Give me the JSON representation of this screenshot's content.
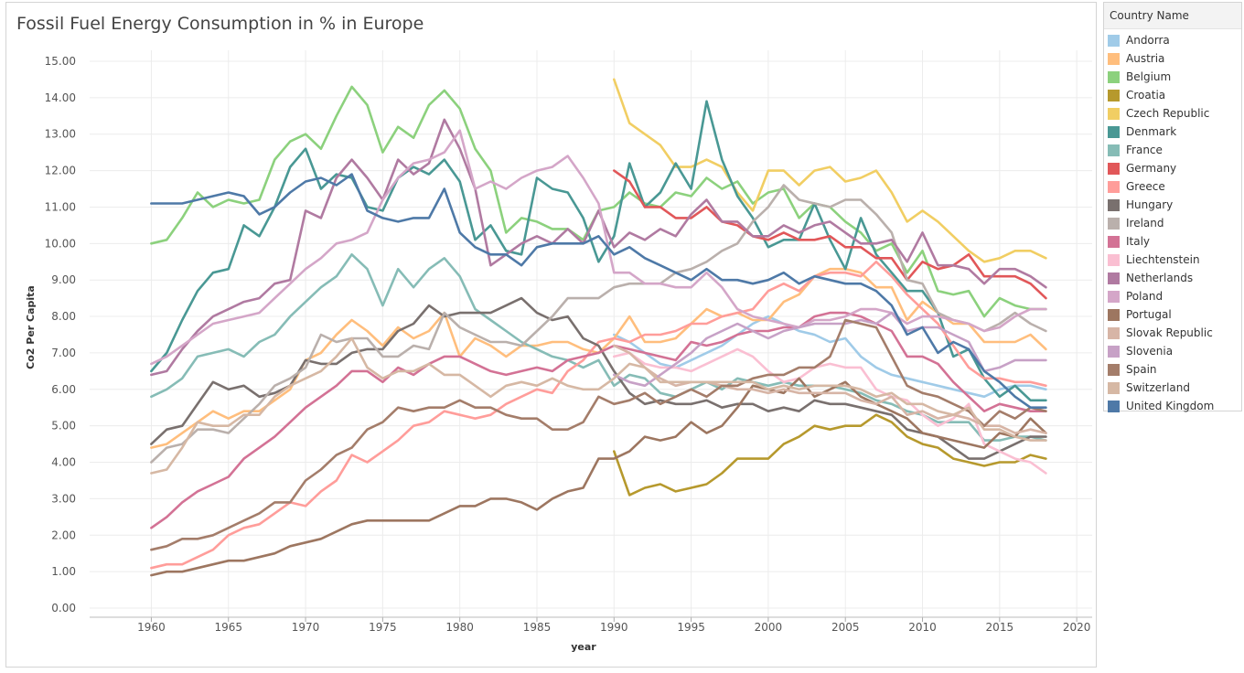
{
  "chart_data": {
    "type": "line",
    "title": "Fossil Fuel Energy Consumption in % in Europe",
    "xlabel": "year",
    "ylabel": "Co2 Per Capita",
    "xlim": [
      1956,
      2021
    ],
    "ylim": [
      -0.25,
      15.3
    ],
    "x_ticks": [
      1960,
      1965,
      1970,
      1975,
      1980,
      1985,
      1990,
      1995,
      2000,
      2005,
      2010,
      2015,
      2020
    ],
    "x_tick_labels": [
      "1960",
      "1965",
      "1970",
      "1975",
      "1980",
      "1985",
      "1990",
      "1995",
      "2000",
      "2005",
      "2010",
      "2015",
      "2020"
    ],
    "y_ticks": [
      0,
      1,
      2,
      3,
      4,
      5,
      6,
      7,
      8,
      9,
      10,
      11,
      12,
      13,
      14,
      15
    ],
    "y_tick_labels": [
      "0.00",
      "1.00",
      "2.00",
      "3.00",
      "4.00",
      "5.00",
      "6.00",
      "7.00",
      "8.00",
      "9.00",
      "10.00",
      "11.00",
      "12.00",
      "13.00",
      "14.00",
      "15.00"
    ],
    "grid": true,
    "legend_title": "Country Name",
    "legend_position": "right",
    "series": [
      {
        "name": "Andorra",
        "color": "#a0cbe8",
        "start": 1990,
        "values": [
          7.5,
          7.3,
          7.0,
          6.7,
          6.6,
          6.8,
          7.0,
          7.2,
          7.5,
          7.8,
          8.0,
          7.8,
          7.6,
          7.5,
          7.3,
          7.4,
          6.9,
          6.6,
          6.4,
          6.3,
          6.2,
          6.1,
          6.0,
          5.9,
          5.8,
          6.0,
          6.1,
          6.1,
          6.0
        ]
      },
      {
        "name": "Austria",
        "color": "#ffbe7d",
        "start": 1960,
        "values": [
          4.4,
          4.5,
          4.8,
          5.1,
          5.4,
          5.2,
          5.4,
          5.4,
          5.7,
          6.0,
          6.8,
          7.0,
          7.5,
          7.9,
          7.6,
          7.2,
          7.7,
          7.4,
          7.6,
          8.1,
          6.9,
          7.4,
          7.2,
          6.9,
          7.2,
          7.2,
          7.3,
          7.3,
          7.1,
          7.0,
          7.4,
          8.0,
          7.3,
          7.3,
          7.4,
          7.8,
          8.2,
          8.0,
          8.1,
          7.9,
          7.9,
          8.4,
          8.6,
          9.1,
          9.3,
          9.3,
          9.2,
          8.8,
          8.8,
          7.9,
          8.4,
          8.1,
          7.8,
          7.8,
          7.3,
          7.3,
          7.3,
          7.5,
          7.1
        ]
      },
      {
        "name": "Belgium",
        "color": "#8cd17d",
        "start": 1960,
        "values": [
          10.0,
          10.1,
          10.7,
          11.4,
          11.0,
          11.2,
          11.1,
          11.2,
          12.3,
          12.8,
          13.0,
          12.6,
          13.5,
          14.3,
          13.8,
          12.5,
          13.2,
          12.9,
          13.8,
          14.2,
          13.7,
          12.6,
          12.0,
          10.3,
          10.7,
          10.6,
          10.4,
          10.4,
          10.1,
          10.9,
          11.0,
          11.4,
          11.1,
          11.0,
          11.4,
          11.3,
          11.8,
          11.5,
          11.7,
          11.1,
          11.4,
          11.5,
          10.7,
          11.1,
          11.0,
          10.6,
          10.3,
          9.8,
          10.0,
          9.2,
          9.8,
          8.7,
          8.6,
          8.7,
          8.0,
          8.5,
          8.3,
          8.2,
          8.2
        ]
      },
      {
        "name": "Croatia",
        "color": "#b6992d",
        "start": 1990,
        "values": [
          4.3,
          3.1,
          3.3,
          3.4,
          3.2,
          3.3,
          3.4,
          3.7,
          4.1,
          4.1,
          4.1,
          4.5,
          4.7,
          5.0,
          4.9,
          5.0,
          5.0,
          5.3,
          5.1,
          4.7,
          4.5,
          4.4,
          4.1,
          4.0,
          3.9,
          4.0,
          4.0,
          4.2,
          4.1
        ]
      },
      {
        "name": "Czech Republic",
        "color": "#f1ce63",
        "start": 1990,
        "values": [
          14.5,
          13.3,
          13.0,
          12.7,
          12.1,
          12.1,
          12.3,
          12.1,
          11.4,
          10.9,
          12.0,
          12.0,
          11.6,
          12.0,
          12.1,
          11.7,
          11.8,
          12.0,
          11.4,
          10.6,
          10.9,
          10.6,
          10.2,
          9.8,
          9.5,
          9.6,
          9.8,
          9.8,
          9.6
        ]
      },
      {
        "name": "Denmark",
        "color": "#499894",
        "start": 1960,
        "values": [
          6.5,
          7.0,
          7.9,
          8.7,
          9.2,
          9.3,
          10.5,
          10.2,
          11.0,
          12.1,
          12.6,
          11.5,
          11.9,
          11.8,
          11.0,
          10.9,
          11.8,
          12.1,
          11.9,
          12.3,
          11.7,
          10.1,
          10.5,
          9.8,
          9.7,
          11.8,
          11.5,
          11.4,
          10.7,
          9.5,
          10.2,
          12.2,
          11.0,
          11.4,
          12.2,
          11.5,
          13.9,
          12.3,
          11.3,
          10.7,
          9.9,
          10.1,
          10.1,
          11.1,
          10.1,
          9.3,
          10.7,
          9.7,
          9.2,
          8.7,
          8.7,
          8.1,
          6.9,
          7.1,
          6.3,
          5.8,
          6.1,
          5.7,
          5.7
        ]
      },
      {
        "name": "France",
        "color": "#86bcb6",
        "start": 1960,
        "values": [
          5.8,
          6.0,
          6.3,
          6.9,
          7.0,
          7.1,
          6.9,
          7.3,
          7.5,
          8.0,
          8.4,
          8.8,
          9.1,
          9.7,
          9.3,
          8.3,
          9.3,
          8.8,
          9.3,
          9.6,
          9.1,
          8.2,
          7.9,
          7.6,
          7.3,
          7.1,
          6.9,
          6.8,
          6.6,
          6.8,
          6.1,
          6.4,
          6.3,
          5.9,
          5.8,
          6.0,
          6.2,
          6.0,
          6.3,
          6.2,
          6.1,
          6.2,
          6.1,
          6.1,
          6.1,
          6.0,
          5.9,
          5.7,
          5.6,
          5.4,
          5.3,
          5.1,
          5.1,
          5.1,
          4.6,
          4.6,
          4.7,
          4.7,
          4.6
        ]
      },
      {
        "name": "Germany",
        "color": "#e15759",
        "start": 1990,
        "values": [
          12.0,
          11.7,
          11.0,
          11.0,
          10.7,
          10.7,
          11.0,
          10.6,
          10.5,
          10.2,
          10.1,
          10.3,
          10.1,
          10.1,
          10.2,
          9.9,
          9.9,
          9.6,
          9.6,
          9.0,
          9.5,
          9.3,
          9.4,
          9.7,
          9.1,
          9.1,
          9.1,
          8.9,
          8.5
        ]
      },
      {
        "name": "Greece",
        "color": "#ff9d9a",
        "start": 1960,
        "values": [
          1.1,
          1.2,
          1.2,
          1.4,
          1.6,
          2.0,
          2.2,
          2.3,
          2.6,
          2.9,
          2.8,
          3.2,
          3.5,
          4.2,
          4.0,
          4.3,
          4.6,
          5.0,
          5.1,
          5.4,
          5.3,
          5.2,
          5.3,
          5.6,
          5.8,
          6.0,
          5.9,
          6.5,
          6.8,
          7.3,
          7.4,
          7.3,
          7.5,
          7.5,
          7.6,
          7.8,
          7.8,
          8.0,
          8.1,
          8.2,
          8.7,
          8.9,
          8.7,
          9.1,
          9.2,
          9.2,
          9.1,
          9.5,
          9.1,
          8.6,
          8.2,
          7.8,
          7.2,
          6.6,
          6.3,
          6.3,
          6.2,
          6.2,
          6.1
        ]
      },
      {
        "name": "Hungary",
        "color": "#79706e",
        "start": 1960,
        "values": [
          4.5,
          4.9,
          5.0,
          5.6,
          6.2,
          6.0,
          6.1,
          5.8,
          5.9,
          6.1,
          6.8,
          6.7,
          6.7,
          7.0,
          7.1,
          7.1,
          7.6,
          7.8,
          8.3,
          8.0,
          8.1,
          8.1,
          8.1,
          8.3,
          8.5,
          8.1,
          7.9,
          8.0,
          7.4,
          7.2,
          6.5,
          5.9,
          5.6,
          5.7,
          5.6,
          5.6,
          5.7,
          5.5,
          5.6,
          5.6,
          5.4,
          5.5,
          5.4,
          5.7,
          5.6,
          5.6,
          5.5,
          5.4,
          5.3,
          4.9,
          4.8,
          4.7,
          4.4,
          4.1,
          4.1,
          4.3,
          4.5,
          4.7,
          4.7
        ]
      },
      {
        "name": "Ireland",
        "color": "#bab0ac",
        "start": 1960,
        "values": [
          4.0,
          4.4,
          4.5,
          4.9,
          4.9,
          4.8,
          5.2,
          5.6,
          6.1,
          6.3,
          6.6,
          7.5,
          7.3,
          7.4,
          7.4,
          6.9,
          6.9,
          7.2,
          7.1,
          8.1,
          7.7,
          7.5,
          7.3,
          7.3,
          7.2,
          7.6,
          8.0,
          8.5,
          8.5,
          8.5,
          8.8,
          8.9,
          8.9,
          8.9,
          9.2,
          9.3,
          9.5,
          9.8,
          10.0,
          10.6,
          11.0,
          11.6,
          11.2,
          11.1,
          11.0,
          11.2,
          11.2,
          10.8,
          10.3,
          9.0,
          8.9,
          8.1,
          7.9,
          7.8,
          7.6,
          7.8,
          8.1,
          7.8,
          7.6
        ]
      },
      {
        "name": "Italy",
        "color": "#d37295",
        "start": 1960,
        "values": [
          2.2,
          2.5,
          2.9,
          3.2,
          3.4,
          3.6,
          4.1,
          4.4,
          4.7,
          5.1,
          5.5,
          5.8,
          6.1,
          6.5,
          6.5,
          6.2,
          6.6,
          6.4,
          6.7,
          6.9,
          6.9,
          6.7,
          6.5,
          6.4,
          6.5,
          6.6,
          6.5,
          6.8,
          6.9,
          7.0,
          7.2,
          7.1,
          7.0,
          6.9,
          6.8,
          7.3,
          7.2,
          7.3,
          7.5,
          7.6,
          7.6,
          7.7,
          7.7,
          8.0,
          8.1,
          8.1,
          8.0,
          7.8,
          7.6,
          6.9,
          6.9,
          6.7,
          6.2,
          5.8,
          5.4,
          5.6,
          5.5,
          5.4,
          5.4
        ]
      },
      {
        "name": "Liechtenstein",
        "color": "#fabfd2",
        "start": 1990,
        "values": [
          6.9,
          7.0,
          6.7,
          6.6,
          6.6,
          6.5,
          6.7,
          6.9,
          7.1,
          6.9,
          6.5,
          6.2,
          6.3,
          6.6,
          6.7,
          6.6,
          6.6,
          6.0,
          5.8,
          5.7,
          5.3,
          5.0,
          5.2,
          5.6,
          4.5,
          4.3,
          4.1,
          4.0,
          3.7
        ]
      },
      {
        "name": "Netherlands",
        "color": "#b07aa1",
        "start": 1960,
        "values": [
          6.4,
          6.5,
          7.1,
          7.6,
          8.0,
          8.2,
          8.4,
          8.5,
          8.9,
          9.0,
          10.9,
          10.7,
          11.8,
          12.3,
          11.8,
          11.2,
          12.3,
          11.9,
          12.2,
          13.4,
          12.6,
          11.5,
          9.4,
          9.7,
          10.0,
          10.2,
          10.0,
          10.4,
          10.0,
          10.9,
          9.9,
          10.3,
          10.1,
          10.4,
          10.2,
          10.8,
          11.2,
          10.6,
          10.6,
          10.2,
          10.2,
          10.5,
          10.3,
          10.5,
          10.6,
          10.3,
          10.0,
          10.0,
          10.1,
          9.5,
          10.3,
          9.4,
          9.4,
          9.3,
          8.9,
          9.3,
          9.3,
          9.1,
          8.8
        ]
      },
      {
        "name": "Poland",
        "color": "#d4a6c8",
        "start": 1960,
        "values": [
          6.7,
          6.9,
          7.2,
          7.5,
          7.8,
          7.9,
          8.0,
          8.1,
          8.5,
          8.9,
          9.3,
          9.6,
          10.0,
          10.1,
          10.3,
          11.2,
          11.8,
          12.2,
          12.3,
          12.5,
          13.1,
          11.5,
          11.7,
          11.5,
          11.8,
          12.0,
          12.1,
          12.4,
          11.8,
          11.1,
          9.2,
          9.2,
          8.9,
          8.9,
          8.8,
          8.8,
          9.2,
          8.8,
          8.2,
          8.0,
          7.9,
          7.8,
          7.7,
          7.9,
          7.9,
          8.0,
          8.2,
          8.2,
          8.1,
          7.8,
          8.0,
          8.0,
          7.9,
          7.8,
          7.6,
          7.7,
          8.0,
          8.2,
          8.2
        ]
      },
      {
        "name": "Portugal",
        "color": "#9d7660",
        "start": 1960,
        "values": [
          0.9,
          1.0,
          1.0,
          1.1,
          1.2,
          1.3,
          1.3,
          1.4,
          1.5,
          1.7,
          1.8,
          1.9,
          2.1,
          2.3,
          2.4,
          2.4,
          2.4,
          2.4,
          2.4,
          2.6,
          2.8,
          2.8,
          3.0,
          3.0,
          2.9,
          2.7,
          3.0,
          3.2,
          3.3,
          4.1,
          4.1,
          4.3,
          4.7,
          4.6,
          4.7,
          5.1,
          4.8,
          5.0,
          5.5,
          6.1,
          6.0,
          5.9,
          6.3,
          5.8,
          6.0,
          6.2,
          5.8,
          5.6,
          5.4,
          5.2,
          4.8,
          4.7,
          4.6,
          4.5,
          4.4,
          4.8,
          4.7,
          5.2,
          4.8
        ]
      },
      {
        "name": "Slovak Republic",
        "color": "#d7b5a6",
        "start": 1990,
        "values": [
          7.2,
          7.0,
          6.6,
          6.3,
          6.1,
          6.2,
          6.2,
          6.1,
          6.0,
          6.0,
          5.9,
          6.0,
          5.9,
          5.9,
          5.9,
          5.9,
          5.7,
          5.6,
          5.8,
          5.3,
          5.4,
          5.2,
          5.3,
          5.2,
          5.0,
          5.0,
          4.8,
          4.9,
          4.8
        ]
      },
      {
        "name": "Slovenia",
        "color": "#c7a1c6",
        "start": 1990,
        "values": [
          6.4,
          6.2,
          6.1,
          6.4,
          6.7,
          7.0,
          7.4,
          7.6,
          7.8,
          7.6,
          7.4,
          7.6,
          7.7,
          7.8,
          7.8,
          7.8,
          7.9,
          7.8,
          8.1,
          7.6,
          7.7,
          7.7,
          7.5,
          7.3,
          6.5,
          6.6,
          6.8,
          6.8,
          6.8
        ]
      },
      {
        "name": "Spain",
        "color": "#a47d6a",
        "start": 1960,
        "values": [
          1.6,
          1.7,
          1.9,
          1.9,
          2.0,
          2.2,
          2.4,
          2.6,
          2.9,
          2.9,
          3.5,
          3.8,
          4.2,
          4.4,
          4.9,
          5.1,
          5.5,
          5.4,
          5.5,
          5.5,
          5.7,
          5.5,
          5.5,
          5.3,
          5.2,
          5.2,
          4.9,
          4.9,
          5.1,
          5.8,
          5.6,
          5.7,
          5.9,
          5.6,
          5.8,
          6.0,
          5.8,
          6.1,
          6.1,
          6.3,
          6.4,
          6.4,
          6.6,
          6.6,
          6.9,
          7.9,
          7.8,
          7.7,
          6.9,
          6.1,
          5.9,
          5.8,
          5.6,
          5.4,
          5.0,
          5.4,
          5.2,
          5.5,
          5.4
        ]
      },
      {
        "name": "Switzerland",
        "color": "#d6b8a4",
        "start": 1960,
        "values": [
          3.7,
          3.8,
          4.4,
          5.1,
          5.0,
          5.0,
          5.3,
          5.3,
          5.8,
          6.1,
          6.3,
          6.5,
          6.9,
          7.4,
          6.6,
          6.3,
          6.5,
          6.5,
          6.7,
          6.4,
          6.4,
          6.1,
          5.8,
          6.1,
          6.2,
          6.1,
          6.3,
          6.1,
          6.0,
          6.0,
          6.3,
          6.7,
          6.6,
          6.2,
          6.2,
          6.2,
          6.2,
          6.2,
          6.2,
          6.2,
          6.0,
          6.1,
          6.0,
          6.1,
          6.1,
          6.1,
          6.0,
          5.8,
          5.9,
          5.6,
          5.6,
          5.4,
          5.3,
          5.5,
          4.9,
          4.9,
          4.7,
          4.6,
          4.6
        ]
      },
      {
        "name": "United Kingdom",
        "color": "#4e79a7",
        "start": 1960,
        "values": [
          11.1,
          11.1,
          11.1,
          11.2,
          11.3,
          11.4,
          11.3,
          10.8,
          11.0,
          11.4,
          11.7,
          11.8,
          11.6,
          11.9,
          10.9,
          10.7,
          10.6,
          10.7,
          10.7,
          11.5,
          10.3,
          9.9,
          9.7,
          9.7,
          9.4,
          9.9,
          10.0,
          10.0,
          10.0,
          10.2,
          9.7,
          9.9,
          9.6,
          9.4,
          9.2,
          9.0,
          9.3,
          9.0,
          9.0,
          8.9,
          9.0,
          9.2,
          8.9,
          9.1,
          9.0,
          8.9,
          8.9,
          8.7,
          8.3,
          7.5,
          7.7,
          7.0,
          7.3,
          7.1,
          6.5,
          6.2,
          5.8,
          5.5,
          5.5
        ]
      }
    ]
  }
}
